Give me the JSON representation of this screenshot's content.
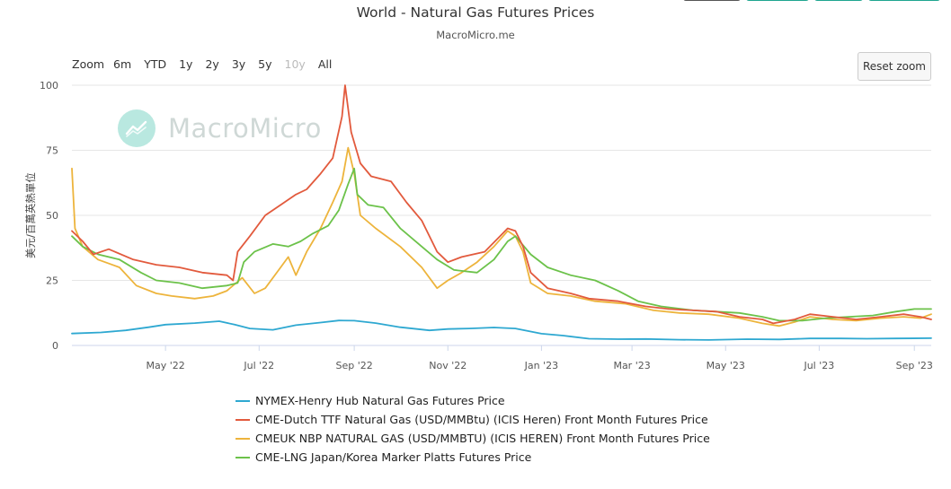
{
  "header": {
    "title": "World - Natural Gas Futures Prices",
    "subtitle": "MacroMicro.me"
  },
  "top_buttons": {
    "colors": [
      "#555555",
      "#1fa58f",
      "#1fa58f",
      "#1fa58f"
    ]
  },
  "zoom": {
    "label": "Zoom",
    "options": [
      "6m",
      "YTD",
      "1y",
      "2y",
      "3y",
      "5y",
      "10y",
      "All"
    ],
    "disabled": [
      "10y"
    ]
  },
  "reset_zoom_label": "Reset zoom",
  "watermark": {
    "text": "MacroMicro"
  },
  "chart_data": {
    "type": "line",
    "title": "World - Natural Gas Futures Prices",
    "subtitle": "MacroMicro.me",
    "ylabel": "美元/百萬英熱單位",
    "ylim": [
      0,
      100
    ],
    "yticks": [
      0,
      25,
      50,
      75,
      100
    ],
    "xlim": [
      "2022-03-01",
      "2023-09-12"
    ],
    "xticks": [
      "2022-05-01",
      "2022-07-01",
      "2022-09-01",
      "2022-11-01",
      "2023-01-01",
      "2023-03-01",
      "2023-05-01",
      "2023-07-01",
      "2023-09-01"
    ],
    "xtick_labels": [
      "May '22",
      "Jul '22",
      "Sep '22",
      "Nov '22",
      "Jan '23",
      "Mar '23",
      "May '23",
      "Jul '23",
      "Sep '23"
    ],
    "grid": "horizontal",
    "legend_position": "bottom",
    "series": [
      {
        "name": "NYMEX-Henry Hub Natural Gas Futures Price",
        "color": "#2ea8d1",
        "points": [
          [
            "2022-03-01",
            4.6
          ],
          [
            "2022-03-20",
            5.0
          ],
          [
            "2022-04-05",
            5.8
          ],
          [
            "2022-04-20",
            7.0
          ],
          [
            "2022-05-01",
            8.0
          ],
          [
            "2022-05-20",
            8.6
          ],
          [
            "2022-06-05",
            9.3
          ],
          [
            "2022-06-15",
            8.0
          ],
          [
            "2022-06-25",
            6.5
          ],
          [
            "2022-07-10",
            6.0
          ],
          [
            "2022-07-25",
            7.8
          ],
          [
            "2022-08-10",
            8.8
          ],
          [
            "2022-08-22",
            9.6
          ],
          [
            "2022-09-01",
            9.5
          ],
          [
            "2022-09-15",
            8.6
          ],
          [
            "2022-10-01",
            7.0
          ],
          [
            "2022-10-20",
            5.8
          ],
          [
            "2022-11-01",
            6.3
          ],
          [
            "2022-11-15",
            6.5
          ],
          [
            "2022-12-01",
            6.9
          ],
          [
            "2022-12-15",
            6.5
          ],
          [
            "2023-01-01",
            4.5
          ],
          [
            "2023-01-15",
            3.8
          ],
          [
            "2023-02-01",
            2.6
          ],
          [
            "2023-02-20",
            2.4
          ],
          [
            "2023-03-10",
            2.5
          ],
          [
            "2023-04-01",
            2.2
          ],
          [
            "2023-04-20",
            2.1
          ],
          [
            "2023-05-15",
            2.4
          ],
          [
            "2023-06-05",
            2.3
          ],
          [
            "2023-06-25",
            2.7
          ],
          [
            "2023-07-15",
            2.7
          ],
          [
            "2023-08-01",
            2.6
          ],
          [
            "2023-08-20",
            2.7
          ],
          [
            "2023-09-12",
            2.8
          ]
        ]
      },
      {
        "name": "CME-Dutch TTF Natural Gas (USD/MMBtu) (ICIS Heren) Front Month Futures Price",
        "color": "#e25a3d",
        "points": [
          [
            "2022-03-01",
            44
          ],
          [
            "2022-03-08",
            40
          ],
          [
            "2022-03-15",
            35
          ],
          [
            "2022-03-25",
            37
          ],
          [
            "2022-04-10",
            33
          ],
          [
            "2022-04-25",
            31
          ],
          [
            "2022-05-10",
            30
          ],
          [
            "2022-05-25",
            28
          ],
          [
            "2022-06-10",
            27
          ],
          [
            "2022-06-14",
            25
          ],
          [
            "2022-06-17",
            36
          ],
          [
            "2022-06-25",
            42
          ],
          [
            "2022-07-05",
            50
          ],
          [
            "2022-07-15",
            54
          ],
          [
            "2022-07-25",
            58
          ],
          [
            "2022-08-01",
            60
          ],
          [
            "2022-08-10",
            66
          ],
          [
            "2022-08-18",
            72
          ],
          [
            "2022-08-24",
            88
          ],
          [
            "2022-08-26",
            100
          ],
          [
            "2022-08-30",
            82
          ],
          [
            "2022-09-05",
            70
          ],
          [
            "2022-09-12",
            65
          ],
          [
            "2022-09-25",
            63
          ],
          [
            "2022-10-05",
            55
          ],
          [
            "2022-10-15",
            48
          ],
          [
            "2022-10-25",
            36
          ],
          [
            "2022-11-01",
            32
          ],
          [
            "2022-11-10",
            34
          ],
          [
            "2022-11-25",
            36
          ],
          [
            "2022-12-05",
            42
          ],
          [
            "2022-12-10",
            45
          ],
          [
            "2022-12-15",
            44
          ],
          [
            "2022-12-20",
            38
          ],
          [
            "2022-12-25",
            28
          ],
          [
            "2023-01-05",
            22
          ],
          [
            "2023-01-20",
            20
          ],
          [
            "2023-02-01",
            18
          ],
          [
            "2023-02-20",
            17
          ],
          [
            "2023-03-10",
            15
          ],
          [
            "2023-03-25",
            14
          ],
          [
            "2023-04-10",
            13.5
          ],
          [
            "2023-04-25",
            13
          ],
          [
            "2023-05-10",
            11
          ],
          [
            "2023-05-25",
            10
          ],
          [
            "2023-06-01",
            8.5
          ],
          [
            "2023-06-15",
            10
          ],
          [
            "2023-06-25",
            12
          ],
          [
            "2023-07-10",
            11
          ],
          [
            "2023-07-25",
            10
          ],
          [
            "2023-08-10",
            11
          ],
          [
            "2023-08-25",
            12
          ],
          [
            "2023-09-05",
            11
          ],
          [
            "2023-09-12",
            10
          ]
        ]
      },
      {
        "name": "CMEUK NBP NATURAL GAS (USD/MMBTU) (ICIS HEREN) Front Month Futures Price",
        "color": "#edb43c",
        "points": [
          [
            "2022-03-01",
            68
          ],
          [
            "2022-03-03",
            45
          ],
          [
            "2022-03-08",
            38
          ],
          [
            "2022-03-18",
            33
          ],
          [
            "2022-04-01",
            30
          ],
          [
            "2022-04-12",
            23
          ],
          [
            "2022-04-25",
            20
          ],
          [
            "2022-05-05",
            19
          ],
          [
            "2022-05-20",
            18
          ],
          [
            "2022-06-01",
            19
          ],
          [
            "2022-06-10",
            21
          ],
          [
            "2022-06-20",
            26
          ],
          [
            "2022-06-28",
            20
          ],
          [
            "2022-07-05",
            22
          ],
          [
            "2022-07-15",
            30
          ],
          [
            "2022-07-20",
            34
          ],
          [
            "2022-07-25",
            27
          ],
          [
            "2022-08-01",
            36
          ],
          [
            "2022-08-10",
            45
          ],
          [
            "2022-08-18",
            55
          ],
          [
            "2022-08-24",
            63
          ],
          [
            "2022-08-28",
            76
          ],
          [
            "2022-09-01",
            66
          ],
          [
            "2022-09-05",
            50
          ],
          [
            "2022-09-15",
            45
          ],
          [
            "2022-10-01",
            38
          ],
          [
            "2022-10-15",
            30
          ],
          [
            "2022-10-25",
            22
          ],
          [
            "2022-11-01",
            25
          ],
          [
            "2022-11-10",
            28
          ],
          [
            "2022-11-20",
            32
          ],
          [
            "2022-12-01",
            38
          ],
          [
            "2022-12-10",
            44
          ],
          [
            "2022-12-15",
            42
          ],
          [
            "2022-12-20",
            36
          ],
          [
            "2022-12-25",
            24
          ],
          [
            "2023-01-05",
            20
          ],
          [
            "2023-01-20",
            19
          ],
          [
            "2023-02-05",
            17
          ],
          [
            "2023-02-25",
            16
          ],
          [
            "2023-03-15",
            13.5
          ],
          [
            "2023-04-01",
            12.5
          ],
          [
            "2023-04-20",
            12
          ],
          [
            "2023-05-10",
            10.5
          ],
          [
            "2023-05-25",
            8.5
          ],
          [
            "2023-06-05",
            7.5
          ],
          [
            "2023-06-15",
            9
          ],
          [
            "2023-06-25",
            11
          ],
          [
            "2023-07-10",
            10
          ],
          [
            "2023-07-25",
            9.5
          ],
          [
            "2023-08-10",
            10.5
          ],
          [
            "2023-08-25",
            11
          ],
          [
            "2023-09-05",
            10.5
          ],
          [
            "2023-09-12",
            12
          ]
        ]
      },
      {
        "name": "CME-LNG Japan/Korea Marker Platts Futures Price",
        "color": "#6cc24a",
        "points": [
          [
            "2022-03-01",
            42
          ],
          [
            "2022-03-08",
            38
          ],
          [
            "2022-03-18",
            35
          ],
          [
            "2022-04-01",
            33
          ],
          [
            "2022-04-15",
            28
          ],
          [
            "2022-04-25",
            25
          ],
          [
            "2022-05-10",
            24
          ],
          [
            "2022-05-25",
            22
          ],
          [
            "2022-06-10",
            23
          ],
          [
            "2022-06-17",
            24
          ],
          [
            "2022-06-21",
            32
          ],
          [
            "2022-06-28",
            36
          ],
          [
            "2022-07-10",
            39
          ],
          [
            "2022-07-20",
            38
          ],
          [
            "2022-07-28",
            40
          ],
          [
            "2022-08-05",
            43
          ],
          [
            "2022-08-15",
            46
          ],
          [
            "2022-08-22",
            52
          ],
          [
            "2022-08-28",
            62
          ],
          [
            "2022-09-01",
            68
          ],
          [
            "2022-09-03",
            58
          ],
          [
            "2022-09-10",
            54
          ],
          [
            "2022-09-20",
            53
          ],
          [
            "2022-10-01",
            45
          ],
          [
            "2022-10-15",
            38
          ],
          [
            "2022-10-25",
            33
          ],
          [
            "2022-11-05",
            29
          ],
          [
            "2022-11-20",
            28
          ],
          [
            "2022-12-01",
            33
          ],
          [
            "2022-12-10",
            40
          ],
          [
            "2022-12-15",
            42
          ],
          [
            "2022-12-25",
            35
          ],
          [
            "2023-01-05",
            30
          ],
          [
            "2023-01-20",
            27
          ],
          [
            "2023-02-05",
            25
          ],
          [
            "2023-02-20",
            21
          ],
          [
            "2023-03-05",
            17
          ],
          [
            "2023-03-20",
            15
          ],
          [
            "2023-04-10",
            13.5
          ],
          [
            "2023-04-25",
            13
          ],
          [
            "2023-05-10",
            12.5
          ],
          [
            "2023-05-25",
            11
          ],
          [
            "2023-06-05",
            9.5
          ],
          [
            "2023-06-20",
            9.5
          ],
          [
            "2023-07-05",
            10.5
          ],
          [
            "2023-07-20",
            11
          ],
          [
            "2023-08-05",
            11.5
          ],
          [
            "2023-08-20",
            13
          ],
          [
            "2023-09-01",
            14
          ],
          [
            "2023-09-12",
            14
          ]
        ]
      }
    ]
  }
}
